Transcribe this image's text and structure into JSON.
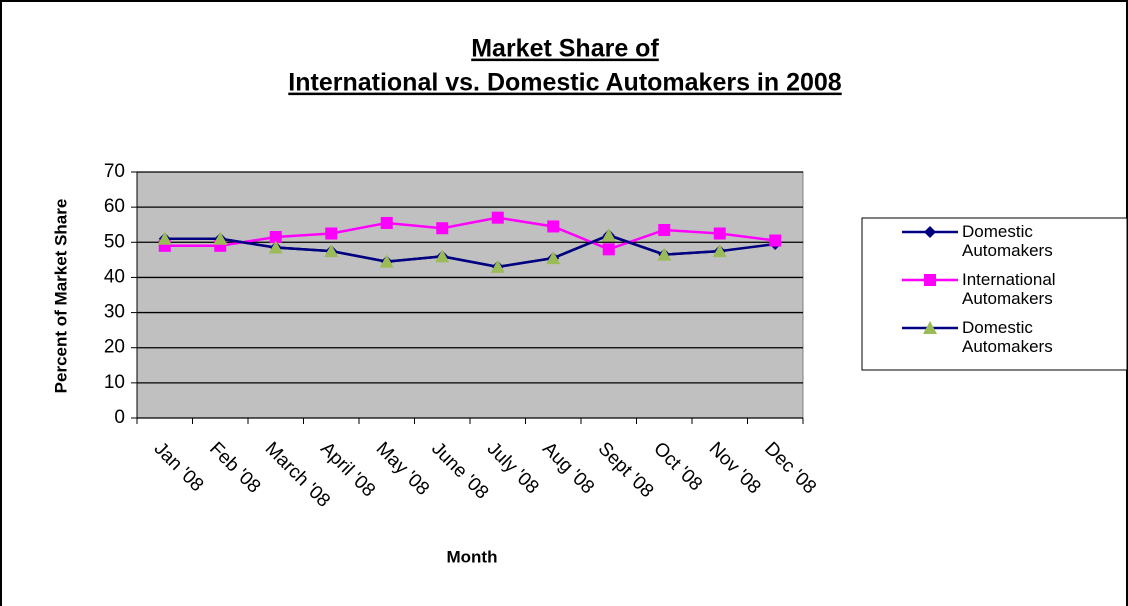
{
  "chart_data": {
    "type": "line",
    "title": [
      "Market Share of",
      "International vs. Domestic Automakers in 2008"
    ],
    "x_label": "Month",
    "y_label": "Percent of Market Share",
    "categories": [
      "Jan '08",
      "Feb '08",
      "March '08",
      "April '08",
      "May '08",
      "June '08",
      "July '08",
      "Aug '08",
      "Sept '08",
      "Oct '08",
      "Nov '08",
      "Dec '08"
    ],
    "series": [
      {
        "name": "Domestic Automakers",
        "color": "#000080",
        "marker": "diamond",
        "marker_color": "#000080",
        "values": [
          51,
          51,
          48.5,
          47.5,
          44.5,
          46,
          43,
          45.5,
          52,
          46.5,
          47.5,
          49.5
        ]
      },
      {
        "name": "International Automakers",
        "color": "#ff00ff",
        "marker": "square",
        "marker_color": "#ff00ff",
        "values": [
          49,
          49,
          51.5,
          52.5,
          55.5,
          54,
          57,
          54.5,
          48,
          53.5,
          52.5,
          50.5
        ]
      },
      {
        "name": "Domestic Automakers",
        "color": "#000080",
        "marker": "triangle",
        "marker_color": "#9bbb59",
        "values": [
          51,
          51,
          48.5,
          47.5,
          44.5,
          46,
          43,
          45.5,
          52,
          46.5,
          47.5,
          null
        ]
      }
    ],
    "ylim": [
      0,
      70
    ],
    "yticks": [
      0,
      10,
      20,
      30,
      40,
      50,
      60,
      70
    ],
    "grid": true,
    "legend": "right"
  }
}
